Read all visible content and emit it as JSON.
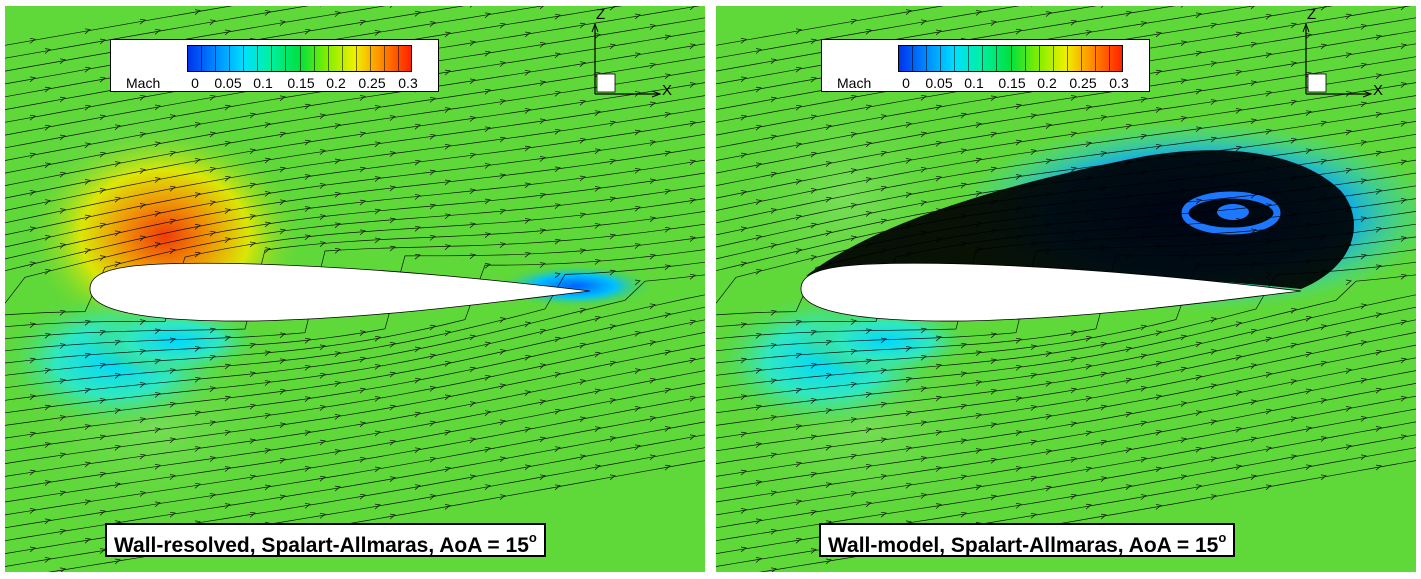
{
  "panels": [
    {
      "id": "left",
      "legend": {
        "title": "Mach",
        "ticks": [
          "0",
          "0.05",
          "0.1",
          "0.15",
          "0.2",
          "0.25",
          "0.3"
        ]
      },
      "axes": {
        "z": "Z",
        "x": "X"
      },
      "caption": {
        "text": "Wall-resolved, Spalart-Allmaras, AoA = 15",
        "superscript": "o"
      }
    },
    {
      "id": "right",
      "legend": {
        "title": "Mach",
        "ticks": [
          "0",
          "0.05",
          "0.1",
          "0.15",
          "0.2",
          "0.25",
          "0.3"
        ]
      },
      "axes": {
        "z": "Z",
        "x": "X"
      },
      "caption": {
        "text": "Wall-model, Spalart-Allmaras, AoA = 15",
        "superscript": "o"
      }
    }
  ],
  "colormap": {
    "variable": "Mach",
    "range": [
      0,
      0.32
    ],
    "colors": [
      "#0033ee",
      "#0088ff",
      "#00e0ff",
      "#00f0a0",
      "#00e040",
      "#80ee00",
      "#f0f000",
      "#ff8800",
      "#ff2200"
    ]
  },
  "colors": {
    "freestream": "#5fd83a",
    "airfoil": "#ffffff",
    "streamline": "#000000",
    "separation": "#000000"
  }
}
